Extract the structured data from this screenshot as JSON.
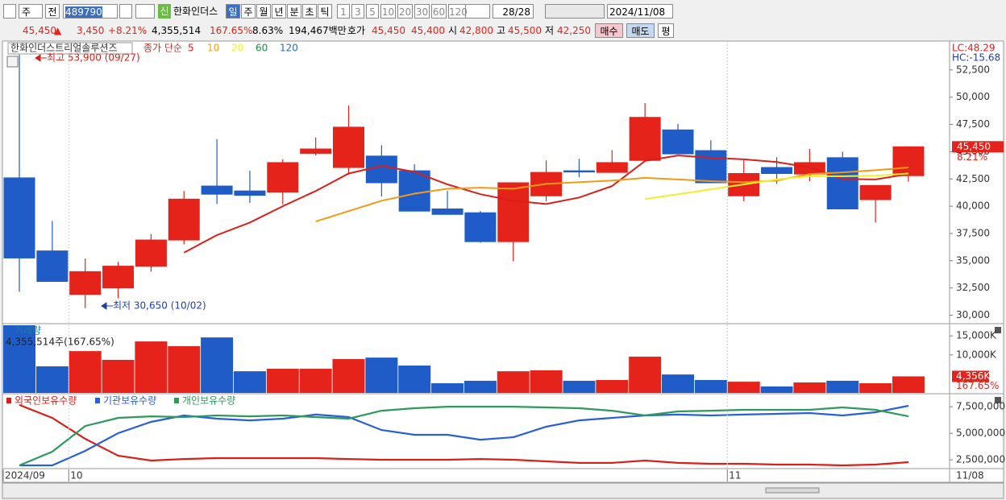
{
  "toolbar": {
    "market": "주",
    "prev": "전",
    "code": "489790",
    "badge": "신",
    "name": "한화인더스",
    "periods": [
      "일",
      "주",
      "월",
      "년",
      "분",
      "초",
      "틱"
    ],
    "intervals": [
      "1",
      "3",
      "5",
      "10",
      "20",
      "30",
      "60",
      "120"
    ],
    "count": "28/28",
    "date": "2024/11/08"
  },
  "quote": {
    "price": "45,450",
    "arrow": "▲",
    "change": "3,450",
    "change_pct": "+8.21%",
    "volume": "4,355,514",
    "volume_ratio": "167.65%",
    "turnover": "8.63%",
    "amount": "194,467백만",
    "bid_ask_label": "호가",
    "ask": "45,450",
    "bid": "45,400",
    "open_label": "시",
    "open": "42,800",
    "high_label": "고",
    "high": "45,500",
    "low_label": "저",
    "low": "42,250",
    "buttons": [
      "매수",
      "매도",
      "평"
    ]
  },
  "chart_data": [
    {
      "type": "candlestick",
      "title": "한화인더스트리얼솔루션즈",
      "up_color": "#e5231b",
      "down_color": "#1f5cc8",
      "open": [
        42600,
        35900,
        31900,
        32500,
        34500,
        36900,
        41850,
        41400,
        41300,
        44850,
        43550,
        44600,
        43250,
        39750,
        39400,
        36750,
        40950,
        43250,
        43100,
        44200,
        47000,
        45100,
        40950,
        43550,
        42950,
        44450,
        40600,
        42800
      ],
      "high": [
        53900,
        38650,
        35200,
        34900,
        37450,
        41400,
        46150,
        43250,
        44300,
        46300,
        49250,
        45600,
        43850,
        41400,
        39550,
        42150,
        44200,
        44350,
        45150,
        49450,
        47550,
        46050,
        44200,
        44500,
        45250,
        45000,
        41900,
        45500
      ],
      "low": [
        32150,
        33100,
        30650,
        31550,
        34000,
        36500,
        40200,
        40300,
        40150,
        44650,
        42900,
        40900,
        39550,
        39250,
        36650,
        34950,
        40450,
        42650,
        43100,
        44150,
        44750,
        42150,
        40450,
        42050,
        42300,
        39750,
        38500,
        42250
      ],
      "close": [
        35250,
        33100,
        34000,
        34500,
        36900,
        40650,
        41100,
        41000,
        44000,
        45250,
        47250,
        42150,
        39550,
        39250,
        36750,
        42150,
        43100,
        43150,
        44000,
        48150,
        44800,
        42150,
        43000,
        43000,
        44000,
        39750,
        41900,
        45450
      ],
      "legend_label": "종가 단순",
      "ma": [
        {
          "name": "5",
          "color": "#d8201a",
          "values": [
            null,
            null,
            null,
            null,
            null,
            35750,
            37350,
            38500,
            40000,
            41400,
            43000,
            43700,
            43150,
            42000,
            41100,
            40500,
            40200,
            40800,
            41850,
            44150,
            44650,
            44450,
            44300,
            44050,
            43550,
            42500,
            42450,
            42950
          ]
        },
        {
          "name": "10",
          "color": "#f39a12",
          "values": [
            null,
            null,
            null,
            null,
            null,
            null,
            null,
            null,
            null,
            38600,
            39550,
            40500,
            41150,
            41600,
            41700,
            41600,
            42050,
            42200,
            42350,
            42600,
            42450,
            42300,
            42200,
            42350,
            42950,
            43100,
            43300,
            43550
          ]
        },
        {
          "name": "20",
          "color": "#f2ee2a",
          "values": [
            null,
            null,
            null,
            null,
            null,
            null,
            null,
            null,
            null,
            null,
            null,
            null,
            null,
            null,
            null,
            null,
            null,
            null,
            null,
            40650,
            41100,
            41550,
            42000,
            42450,
            42750,
            42750,
            42800,
            43000
          ]
        }
      ],
      "legend_extra": [
        {
          "name": "60",
          "color": "#1e8a4a"
        },
        {
          "name": "120",
          "color": "#1f6fb8"
        }
      ],
      "ylim": [
        29300,
        55000
      ],
      "yticks": [
        {
          "value": 52500,
          "label": "52,500"
        },
        {
          "value": 50000,
          "label": "50,000"
        },
        {
          "value": 47500,
          "label": "47,500"
        },
        {
          "value": 45000,
          "label": "45,000"
        },
        {
          "value": 42500,
          "label": "42,500"
        },
        {
          "value": 40000,
          "label": "40,000"
        },
        {
          "value": 37500,
          "label": "37,500"
        },
        {
          "value": 35000,
          "label": "35,000"
        },
        {
          "value": 32500,
          "label": "32,500"
        },
        {
          "value": 30000,
          "label": "30,000"
        }
      ],
      "high_note": "최고 53,900 (09/27)",
      "low_note": "최저 30,650 (10/02)",
      "lc": "LC:48.29",
      "hc": "HC:-15.68",
      "last_tag": "45,450",
      "last_pct": "8.21%"
    },
    {
      "type": "bar",
      "title": "거래량",
      "note": "4,355,514주(167.65%)",
      "values": [
        17800,
        7000,
        11000,
        8700,
        13550,
        12300,
        14600,
        5700,
        6350,
        6350,
        8900,
        9300,
        7200,
        2550,
        3200,
        5700,
        5950,
        3200,
        3400,
        9550,
        4850,
        3400,
        2950,
        1700,
        2750,
        3200,
        2550,
        4356
      ],
      "colors": [
        "#1f5cc8",
        "#1f5cc8",
        "#e5231b",
        "#e5231b",
        "#e5231b",
        "#e5231b",
        "#1f5cc8",
        "#1f5cc8",
        "#e5231b",
        "#e5231b",
        "#e5231b",
        "#1f5cc8",
        "#1f5cc8",
        "#1f5cc8",
        "#1f5cc8",
        "#e5231b",
        "#e5231b",
        "#1f5cc8",
        "#e5231b",
        "#e5231b",
        "#1f5cc8",
        "#1f5cc8",
        "#e5231b",
        "#1f5cc8",
        "#e5231b",
        "#1f5cc8",
        "#e5231b",
        "#e5231b"
      ],
      "ylim": [
        0,
        17800
      ],
      "yticks": [
        {
          "value": 15000,
          "label": "15,000K"
        },
        {
          "value": 10000,
          "label": "10,000K"
        }
      ],
      "last_tag": "4,356K",
      "last_pct": "167.65%"
    },
    {
      "type": "line",
      "categories": [
        "2024/09",
        null,
        "10",
        null,
        null,
        null,
        null,
        null,
        null,
        null,
        null,
        null,
        null,
        null,
        null,
        null,
        null,
        null,
        null,
        null,
        null,
        null,
        "11",
        null,
        null,
        null,
        null,
        null
      ],
      "end_label": "11/08",
      "series": [
        {
          "name": "외국인보유수량",
          "color": "#d8201a",
          "values": [
            7670000,
            6450000,
            4480000,
            2890000,
            2430000,
            2580000,
            2660000,
            2660000,
            2660000,
            2660000,
            2580000,
            2510000,
            2510000,
            2510000,
            2580000,
            2510000,
            2360000,
            2210000,
            2210000,
            2430000,
            2210000,
            2130000,
            2130000,
            2050000,
            2050000,
            1980000,
            2050000,
            2280000
          ]
        },
        {
          "name": "기관보유수량",
          "color": "#2a5fd8",
          "values": [
            1980000,
            1980000,
            3340000,
            5010000,
            6070000,
            6680000,
            6380000,
            6220000,
            6380000,
            6760000,
            6530000,
            5310000,
            4860000,
            4860000,
            4400000,
            4630000,
            5620000,
            6220000,
            6450000,
            6680000,
            6760000,
            6680000,
            6760000,
            6830000,
            6910000,
            6680000,
            6980000,
            7590000
          ]
        },
        {
          "name": "개인보유수량",
          "color": "#2e9a5a",
          "values": [
            1980000,
            3270000,
            5690000,
            6450000,
            6600000,
            6530000,
            6680000,
            6600000,
            6680000,
            6530000,
            6380000,
            7130000,
            7360000,
            7510000,
            7510000,
            7510000,
            7440000,
            7360000,
            7130000,
            6680000,
            7060000,
            7130000,
            7210000,
            7210000,
            7210000,
            7440000,
            7210000,
            6600000
          ]
        }
      ],
      "ylim": [
        1750000,
        8500000
      ],
      "yticks": [
        {
          "value": 7500000,
          "label": "7,500,000"
        },
        {
          "value": 5000000,
          "label": "5,000,000"
        },
        {
          "value": 2500000,
          "label": "2,500,000"
        }
      ]
    }
  ]
}
